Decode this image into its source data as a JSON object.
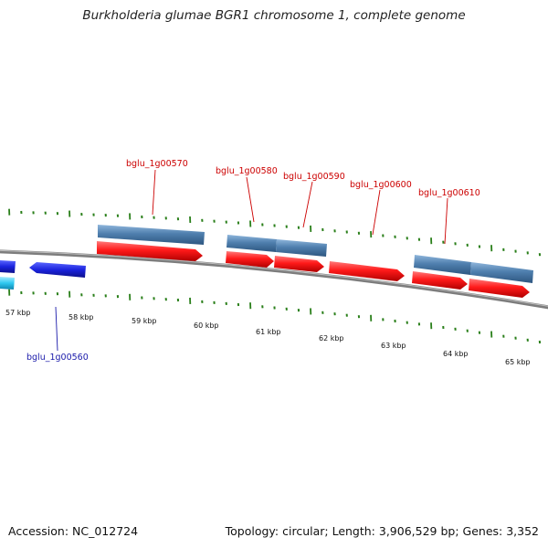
{
  "title": "Burkholderia glumae BGR1 chromosome 1, complete genome",
  "footer": {
    "accession": "Accession: NC_012724",
    "stats": "Topology: circular; Length: 3,906,529 bp; Genes: 3,352"
  },
  "colors": {
    "backbone": "#888888",
    "tick": "#2a7f1a",
    "cds_forward": "#ff2222",
    "gene_forward": "#4f7fae",
    "cds_reverse": "#1a22dd",
    "gene_reverse": "#2ec8f0",
    "label_forward": "#cc0000",
    "label_reverse": "#1a1aaa"
  },
  "scale": {
    "unit": "kbp",
    "labels": [
      "57 kbp",
      "58 kbp",
      "59 kbp",
      "60 kbp",
      "61 kbp",
      "62 kbp",
      "63 kbp",
      "64 kbp",
      "65 kbp"
    ]
  },
  "gene_labels": [
    {
      "name": "bglu_1g00560",
      "strand": "reverse"
    },
    {
      "name": "bglu_1g00570",
      "strand": "forward"
    },
    {
      "name": "bglu_1g00580",
      "strand": "forward"
    },
    {
      "name": "bglu_1g00590",
      "strand": "forward"
    },
    {
      "name": "bglu_1g00600",
      "strand": "forward"
    },
    {
      "name": "bglu_1g00610",
      "strand": "forward"
    }
  ]
}
